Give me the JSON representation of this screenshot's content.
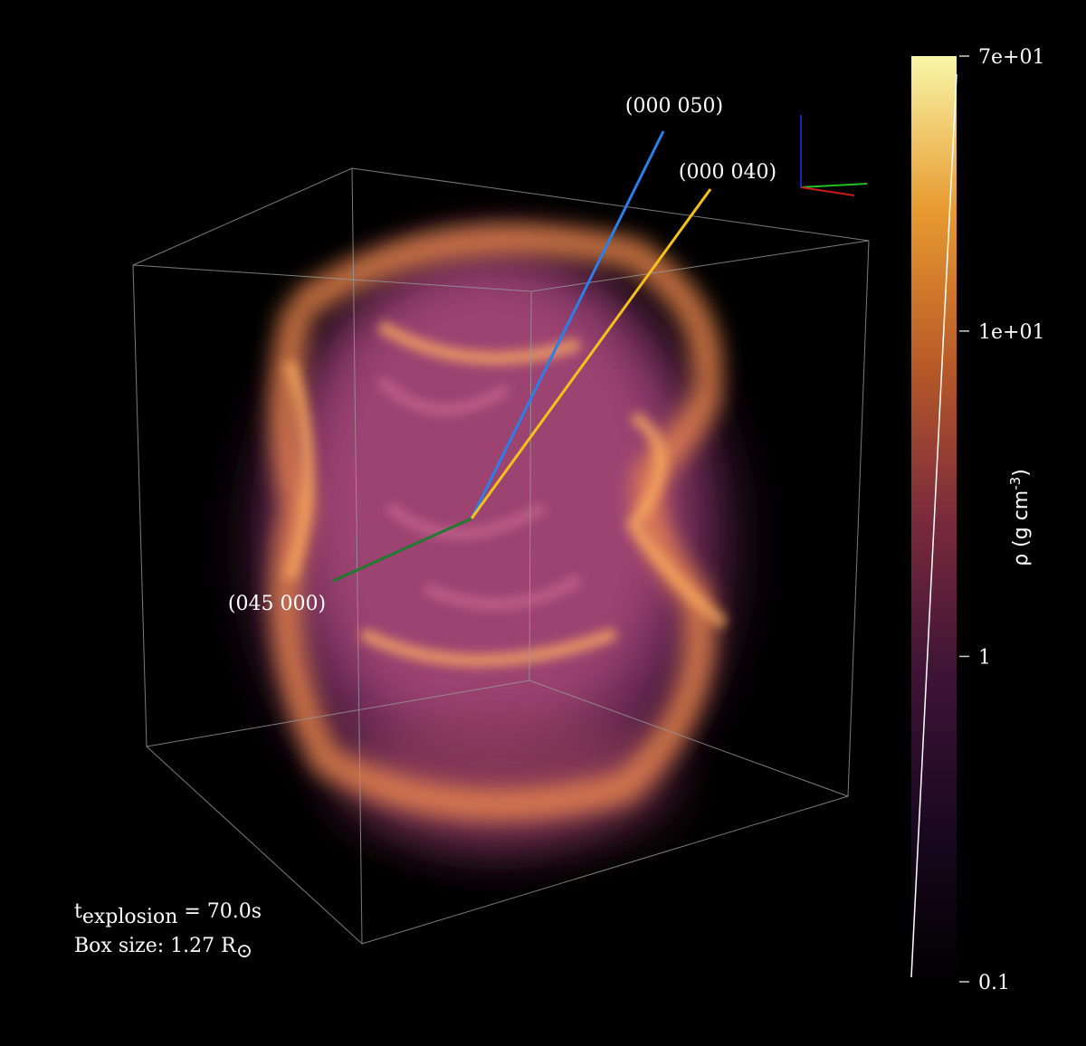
{
  "annotations": {
    "line_labels": [
      "(000 050)",
      "(000 040)",
      "(045 000)"
    ],
    "time": {
      "symbol": "t",
      "subscript": "explosion",
      "text": " = 70.0s"
    },
    "box_size": {
      "text": "Box size: 1.27 R",
      "subscript": "⊙"
    }
  },
  "colorbar": {
    "label": {
      "text": "ρ (g cm",
      "superscript": "-3",
      "end": ")"
    },
    "scale": "log",
    "lim": [
      0.1,
      70
    ],
    "ticks": [
      0.1,
      1,
      {
        "value": 10,
        "label": "1e+01"
      },
      {
        "value": 70,
        "label": "7e+01"
      }
    ],
    "colors": [
      "#000000",
      "#1a0820",
      "#3e1436",
      "#7a2a3c",
      "#b85a28",
      "#e89a30",
      "#f8f6a8"
    ]
  }
}
